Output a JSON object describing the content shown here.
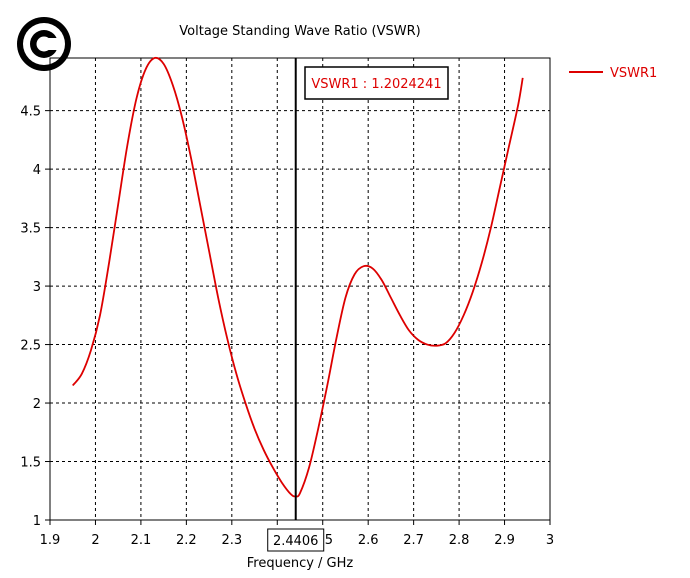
{
  "chart_data": {
    "type": "line",
    "title": "Voltage Standing Wave Ratio (VSWR)",
    "xlabel": "Frequency / GHz",
    "ylabel": "",
    "xlim": [
      1.9,
      3.0
    ],
    "ylim": [
      1.0,
      4.95
    ],
    "xticks": [
      "1.9",
      "2",
      "2.1",
      "2.2",
      "2.3",
      "2.4",
      "2.5",
      "2.6",
      "2.7",
      "2.8",
      "2.9",
      "3"
    ],
    "yticks": [
      "1",
      "1.5",
      "2",
      "2.5",
      "3",
      "3.5",
      "4",
      "4.5"
    ],
    "grid": true,
    "legend_position": "top-right",
    "series": [
      {
        "name": "VSWR1",
        "color": "#dd0000",
        "x": [
          1.95,
          1.97,
          1.99,
          2.01,
          2.03,
          2.05,
          2.07,
          2.09,
          2.11,
          2.13,
          2.15,
          2.17,
          2.19,
          2.21,
          2.23,
          2.25,
          2.27,
          2.29,
          2.31,
          2.33,
          2.35,
          2.37,
          2.39,
          2.41,
          2.43,
          2.4406,
          2.45,
          2.47,
          2.49,
          2.51,
          2.53,
          2.55,
          2.57,
          2.59,
          2.61,
          2.63,
          2.65,
          2.67,
          2.69,
          2.71,
          2.73,
          2.75,
          2.77,
          2.79,
          2.81,
          2.83,
          2.85,
          2.87,
          2.89,
          2.91,
          2.93,
          2.94
        ],
        "values": [
          2.15,
          2.25,
          2.45,
          2.75,
          3.2,
          3.7,
          4.2,
          4.6,
          4.85,
          4.95,
          4.9,
          4.72,
          4.45,
          4.1,
          3.7,
          3.3,
          2.9,
          2.55,
          2.25,
          2.0,
          1.78,
          1.6,
          1.45,
          1.32,
          1.22,
          1.2024,
          1.23,
          1.45,
          1.78,
          2.15,
          2.55,
          2.9,
          3.1,
          3.17,
          3.15,
          3.05,
          2.9,
          2.75,
          2.62,
          2.54,
          2.5,
          2.49,
          2.51,
          2.6,
          2.75,
          2.95,
          3.2,
          3.5,
          3.85,
          4.2,
          4.55,
          4.78
        ]
      }
    ],
    "marker": {
      "label": "VSWR1 : 1.2024241",
      "x": 2.4406,
      "x_label": "2.4406"
    }
  }
}
